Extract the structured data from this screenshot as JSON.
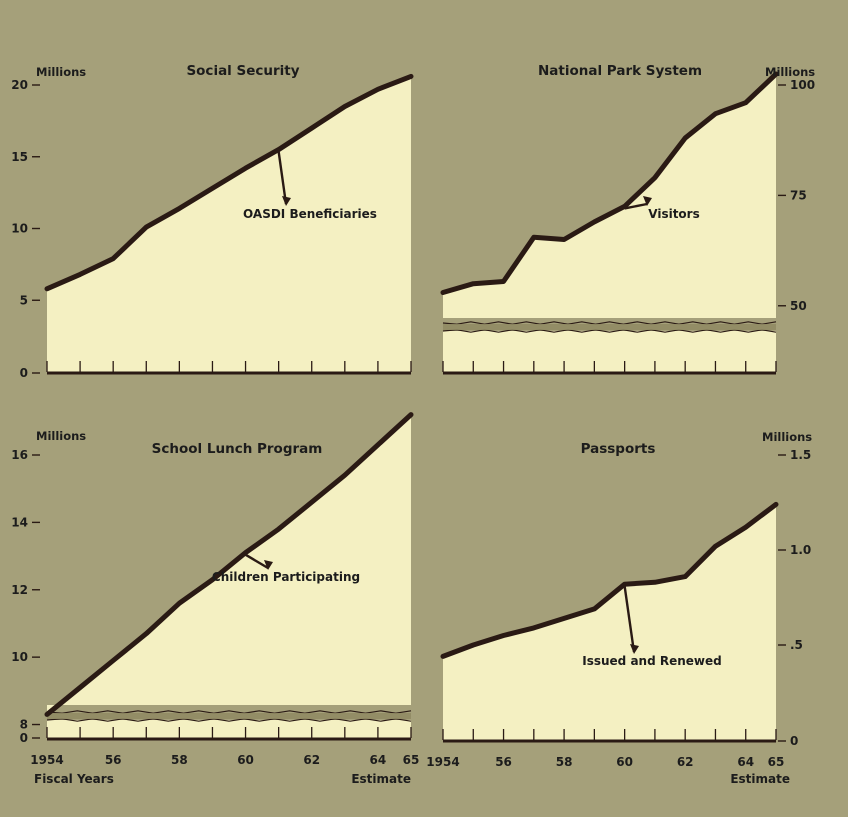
{
  "colors": {
    "background": "#a5a07a",
    "plot_fill": "#f4f0c2",
    "line": "#2a1a14",
    "band": "#8f8a63"
  },
  "x_axis": {
    "tick_labels": [
      "1954",
      "56",
      "58",
      "60",
      "62",
      "64",
      "65"
    ],
    "left_caption": "Fiscal Years",
    "right_caption": "Estimate"
  },
  "chart_data": [
    {
      "type": "area",
      "title": "Social Security",
      "units": "Millions",
      "y_axis_side": "left",
      "annotation": "OASDI Beneficiaries",
      "x": [
        1954,
        1955,
        1956,
        1957,
        1958,
        1959,
        1960,
        1961,
        1962,
        1963,
        1964,
        1965
      ],
      "values": [
        5.8,
        6.8,
        7.9,
        10.1,
        11.4,
        12.8,
        14.2,
        15.5,
        17.0,
        18.5,
        19.7,
        20.6
      ],
      "ylim": [
        0,
        20
      ],
      "y_ticks": [
        0,
        5,
        10,
        15,
        20
      ],
      "y_tick_labels": [
        "0",
        "5",
        "10",
        "15",
        "20"
      ],
      "broken_axis": false
    },
    {
      "type": "area",
      "title": "National Park System",
      "units": "Millions",
      "y_axis_side": "right",
      "annotation": "Visitors",
      "x": [
        1954,
        1955,
        1956,
        1957,
        1958,
        1959,
        1960,
        1961,
        1962,
        1963,
        1964,
        1965
      ],
      "values": [
        53,
        55,
        55.5,
        65.5,
        65,
        69,
        72.5,
        79,
        88,
        93.5,
        96,
        102.5
      ],
      "ylim": [
        35,
        100
      ],
      "y_ticks": [
        50,
        75,
        100
      ],
      "y_tick_labels": [
        "50",
        "75",
        "100"
      ],
      "broken_axis": true
    },
    {
      "type": "area",
      "title": "School Lunch Program",
      "units": "Millions",
      "y_axis_side": "left",
      "annotation": "Children Participating",
      "x": [
        1954,
        1955,
        1956,
        1957,
        1958,
        1959,
        1960,
        1961,
        1962,
        1963,
        1964,
        1965
      ],
      "values": [
        8.3,
        9.1,
        9.9,
        10.7,
        11.6,
        12.3,
        13.1,
        13.8,
        14.6,
        15.4,
        16.3,
        17.2
      ],
      "ylim": [
        7.6,
        16
      ],
      "y_ticks": [
        8,
        10,
        12,
        14,
        16
      ],
      "y_tick_labels": [
        "8",
        "10",
        "12",
        "14",
        "16"
      ],
      "extra_tick_labels": [
        {
          "value": 7.6,
          "label": "0"
        }
      ],
      "broken_axis": true
    },
    {
      "type": "area",
      "title": "Passports",
      "units": "Millions",
      "y_axis_side": "right",
      "annotation": "Issued and Renewed",
      "x": [
        1954,
        1955,
        1956,
        1957,
        1958,
        1959,
        1960,
        1961,
        1962,
        1963,
        1964,
        1965
      ],
      "values": [
        0.44,
        0.5,
        0.55,
        0.59,
        0.64,
        0.69,
        0.82,
        0.83,
        0.86,
        1.02,
        1.12,
        1.24
      ],
      "ylim": [
        0,
        1.5
      ],
      "y_ticks": [
        0,
        0.5,
        1.0,
        1.5
      ],
      "y_tick_labels": [
        "0",
        ".5",
        "1.0",
        "1.5"
      ],
      "broken_axis": false
    }
  ]
}
